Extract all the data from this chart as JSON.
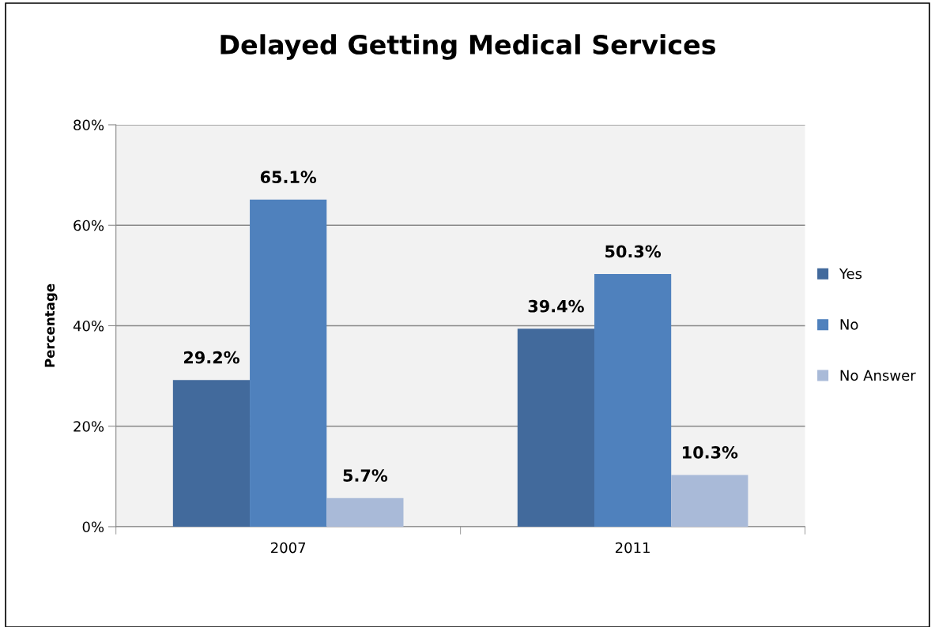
{
  "chart_data": {
    "type": "bar",
    "title": "Delayed Getting Medical Services",
    "ylabel": "Percentage",
    "categories": [
      "2007",
      "2011"
    ],
    "series": [
      {
        "name": "Yes",
        "color": "#426a9c",
        "values": [
          29.2,
          39.4
        ],
        "value_labels": [
          "29.2%",
          "39.4%"
        ]
      },
      {
        "name": "No",
        "color": "#4f81bd",
        "values": [
          65.1,
          50.3
        ],
        "value_labels": [
          "65.1%",
          "50.3%"
        ]
      },
      {
        "name": "No Answer",
        "color": "#a9bad8",
        "values": [
          5.7,
          10.3
        ],
        "value_labels": [
          "5.7%",
          "10.3%"
        ]
      }
    ],
    "ylim": [
      0,
      80
    ],
    "yticks": [
      {
        "value": 0,
        "label": "0%"
      },
      {
        "value": 20,
        "label": "20%"
      },
      {
        "value": 40,
        "label": "40%"
      },
      {
        "value": 60,
        "label": "60%"
      },
      {
        "value": 80,
        "label": "80%"
      }
    ],
    "grid": "y",
    "legend": "right"
  }
}
